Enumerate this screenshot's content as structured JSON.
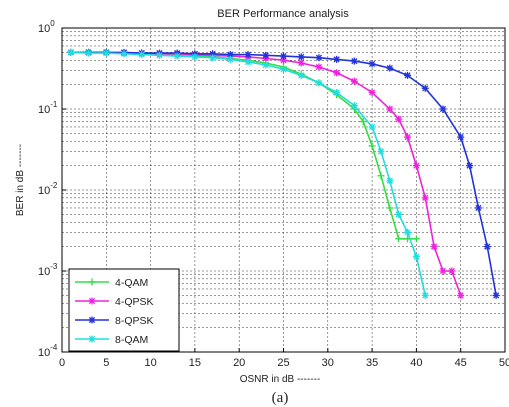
{
  "chart_data": {
    "type": "line",
    "title": "BER Performance analysis",
    "xlabel": "OSNR in dB -------",
    "ylabel": "BER in dB -------",
    "xlim": [
      0,
      50
    ],
    "ylim": [
      0.0001,
      1
    ],
    "yscale": "log",
    "grid": true,
    "legend_position": "bottom-left",
    "x_ticks": [
      "0",
      "5",
      "10",
      "15",
      "20",
      "25",
      "30",
      "35",
      "40",
      "45",
      "50"
    ],
    "y_ticks": [
      {
        "base": "10",
        "exp": "0"
      },
      {
        "base": "10",
        "exp": "-1"
      },
      {
        "base": "10",
        "exp": "-2"
      },
      {
        "base": "10",
        "exp": "-3"
      },
      {
        "base": "10",
        "exp": "-4"
      }
    ],
    "caption": "(a)",
    "series": [
      {
        "name": "4-QAM",
        "color": "#33dd44",
        "marker": "plus",
        "x": [
          1,
          3,
          5,
          7,
          9,
          11,
          13,
          15,
          17,
          19,
          21,
          23,
          25,
          27,
          29,
          31,
          33,
          34,
          35,
          36,
          37,
          38,
          39,
          40
        ],
        "y": [
          0.5,
          0.5,
          0.5,
          0.49,
          0.49,
          0.48,
          0.47,
          0.46,
          0.44,
          0.42,
          0.4,
          0.37,
          0.33,
          0.27,
          0.21,
          0.15,
          0.1,
          0.07,
          0.035,
          0.015,
          0.006,
          0.0025,
          0.0025,
          0.0025
        ]
      },
      {
        "name": "4-QPSK",
        "color": "#ee22dd",
        "marker": "star",
        "x": [
          1,
          3,
          5,
          7,
          9,
          11,
          13,
          15,
          17,
          19,
          21,
          23,
          25,
          27,
          29,
          31,
          33,
          35,
          37,
          38,
          39,
          40,
          41,
          42,
          43,
          44,
          45
        ],
        "y": [
          0.5,
          0.5,
          0.5,
          0.49,
          0.49,
          0.48,
          0.48,
          0.47,
          0.46,
          0.45,
          0.44,
          0.42,
          0.4,
          0.37,
          0.33,
          0.28,
          0.22,
          0.16,
          0.1,
          0.075,
          0.045,
          0.02,
          0.008,
          0.002,
          0.001,
          0.001,
          0.0005
        ]
      },
      {
        "name": "8-QPSK",
        "color": "#2233dd",
        "marker": "star",
        "x": [
          1,
          3,
          5,
          7,
          9,
          11,
          13,
          15,
          17,
          19,
          21,
          23,
          25,
          27,
          29,
          31,
          33,
          35,
          37,
          39,
          41,
          43,
          45,
          46,
          47,
          48,
          49
        ],
        "y": [
          0.5,
          0.5,
          0.5,
          0.5,
          0.49,
          0.49,
          0.49,
          0.48,
          0.48,
          0.47,
          0.47,
          0.46,
          0.45,
          0.44,
          0.43,
          0.41,
          0.39,
          0.36,
          0.32,
          0.26,
          0.18,
          0.1,
          0.045,
          0.02,
          0.006,
          0.002,
          0.0005
        ]
      },
      {
        "name": "8-QAM",
        "color": "#22dddd",
        "marker": "star",
        "x": [
          1,
          3,
          5,
          7,
          9,
          11,
          13,
          15,
          17,
          19,
          21,
          23,
          25,
          27,
          29,
          31,
          33,
          35,
          36,
          37,
          38,
          39,
          40,
          41
        ],
        "y": [
          0.5,
          0.49,
          0.49,
          0.48,
          0.47,
          0.46,
          0.45,
          0.44,
          0.43,
          0.41,
          0.38,
          0.35,
          0.31,
          0.26,
          0.21,
          0.16,
          0.11,
          0.06,
          0.03,
          0.013,
          0.005,
          0.003,
          0.0015,
          0.0005
        ]
      }
    ]
  }
}
